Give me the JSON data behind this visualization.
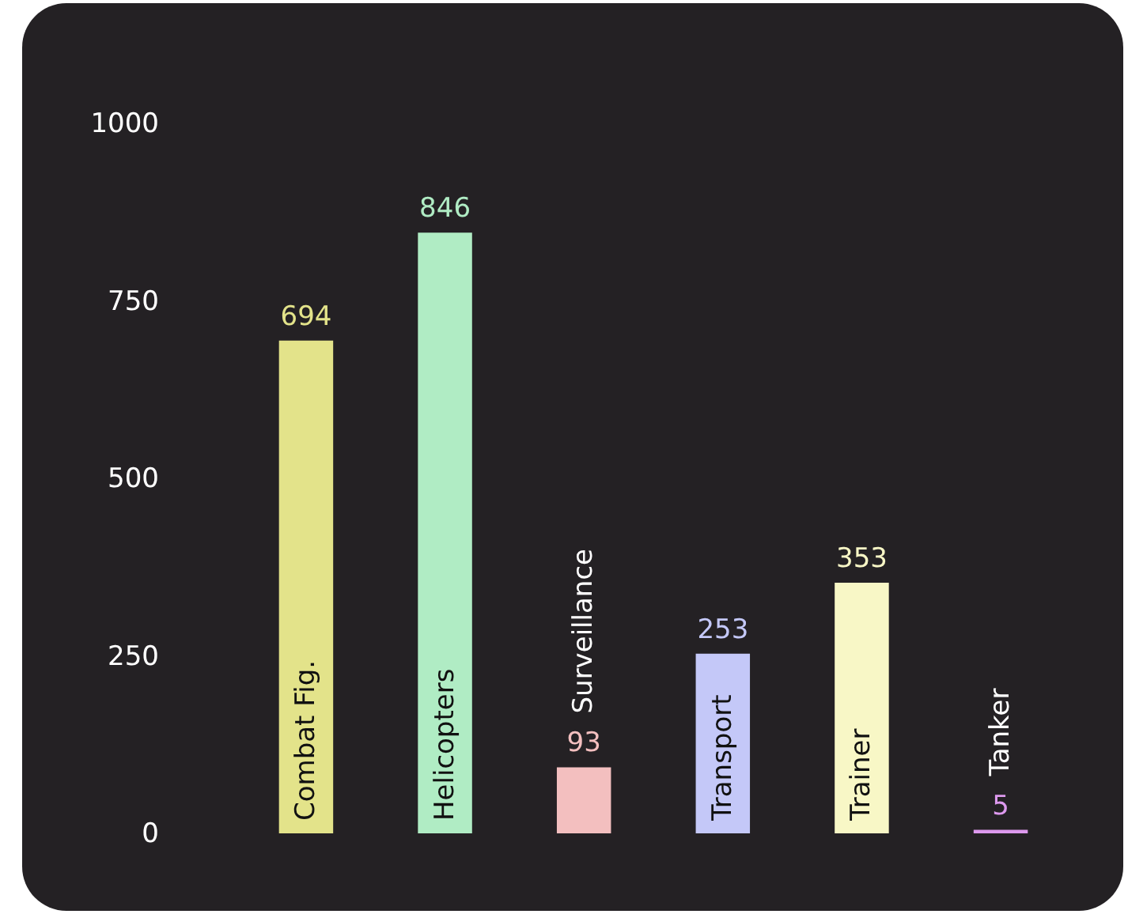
{
  "chart_data": {
    "type": "bar",
    "categories": [
      "Combat Fig.",
      "Helicopters",
      "Surveillance",
      "Transport",
      "Trainer",
      "Tanker"
    ],
    "values": [
      694,
      846,
      93,
      253,
      353,
      5
    ],
    "colors": [
      "#e3e38a",
      "#b0ecc4",
      "#f3bfbf",
      "#c4c8f8",
      "#f8f7c6",
      "#dd99ee"
    ],
    "ylim": [
      0,
      1000
    ],
    "yticks": [
      0,
      250,
      500,
      750,
      1000
    ],
    "grid": false,
    "data_labels": true
  }
}
